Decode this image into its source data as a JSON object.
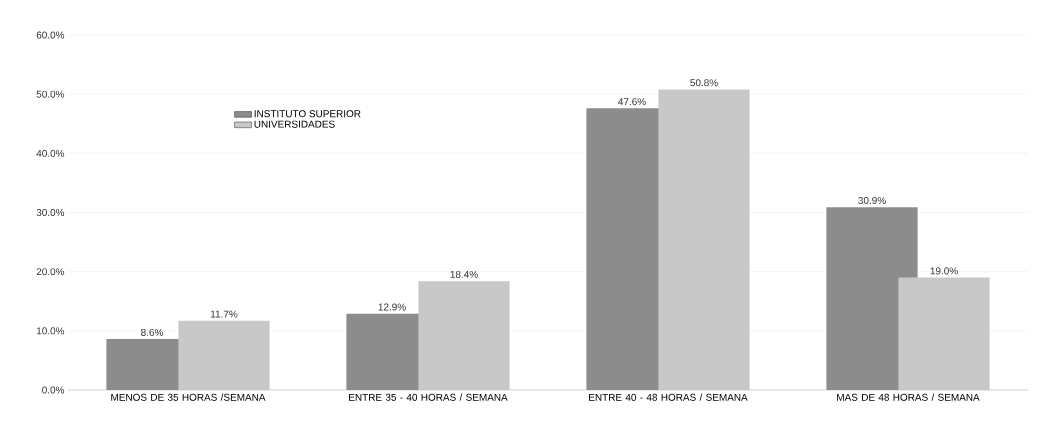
{
  "chart_data": {
    "type": "bar",
    "categories": [
      "MENOS DE 35 HORAS /SEMANA",
      "ENTRE 35 - 40 HORAS / SEMANA",
      "ENTRE 40 - 48 HORAS / SEMANA",
      "MAS DE 48 HORAS / SEMANA"
    ],
    "series": [
      {
        "name": "INSTITUTO SUPERIOR",
        "color": "#8c8c8c",
        "values": [
          8.6,
          12.9,
          47.6,
          30.9
        ],
        "value_labels": [
          "8.6%",
          "12.9%",
          "47.6%",
          "30.9%"
        ]
      },
      {
        "name": "UNIVERSIDADES",
        "color": "#c8c8c8",
        "values": [
          11.7,
          18.4,
          50.8,
          19.0
        ],
        "value_labels": [
          "11.7%",
          "18.4%",
          "50.8%",
          "19.0%"
        ]
      }
    ],
    "ylim": [
      0,
      60
    ],
    "yticks": [
      {
        "value": 0,
        "label": "0.0%"
      },
      {
        "value": 10,
        "label": "10.0%"
      },
      {
        "value": 20,
        "label": "20.0%"
      },
      {
        "value": 30,
        "label": "30.0%"
      },
      {
        "value": 40,
        "label": "40.0%"
      },
      {
        "value": 50,
        "label": "50.0%"
      },
      {
        "value": 60,
        "label": "60.0%"
      }
    ],
    "grid": "y",
    "legend": "top left"
  }
}
